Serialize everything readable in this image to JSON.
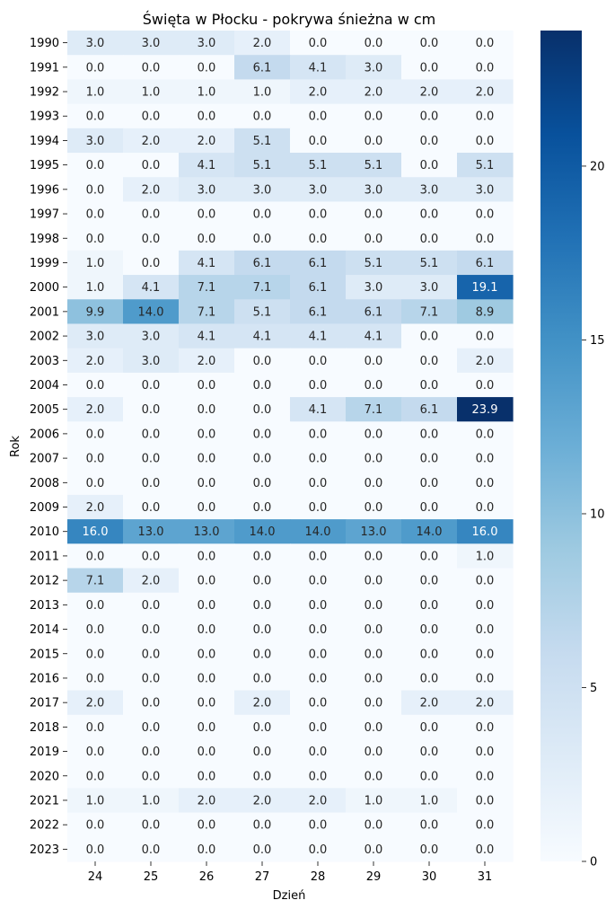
{
  "chart_data": {
    "type": "heatmap",
    "title": "Święta w Płocku - pokrywa śnieżna w cm",
    "xlabel": "Dzień",
    "ylabel": "Rok",
    "x_categories": [
      "24",
      "25",
      "26",
      "27",
      "28",
      "29",
      "30",
      "31"
    ],
    "y_categories": [
      "1990",
      "1991",
      "1992",
      "1993",
      "1994",
      "1995",
      "1996",
      "1997",
      "1998",
      "1999",
      "2000",
      "2001",
      "2002",
      "2003",
      "2004",
      "2005",
      "2006",
      "2007",
      "2008",
      "2009",
      "2010",
      "2011",
      "2012",
      "2013",
      "2014",
      "2015",
      "2016",
      "2017",
      "2018",
      "2019",
      "2020",
      "2021",
      "2022",
      "2023"
    ],
    "values": [
      [
        3.0,
        3.0,
        3.0,
        2.0,
        0.0,
        0.0,
        0.0,
        0.0
      ],
      [
        0.0,
        0.0,
        0.0,
        6.1,
        4.1,
        3.0,
        0.0,
        0.0
      ],
      [
        1.0,
        1.0,
        1.0,
        1.0,
        2.0,
        2.0,
        2.0,
        2.0
      ],
      [
        0.0,
        0.0,
        0.0,
        0.0,
        0.0,
        0.0,
        0.0,
        0.0
      ],
      [
        3.0,
        2.0,
        2.0,
        5.1,
        0.0,
        0.0,
        0.0,
        0.0
      ],
      [
        0.0,
        0.0,
        4.1,
        5.1,
        5.1,
        5.1,
        0.0,
        5.1
      ],
      [
        0.0,
        2.0,
        3.0,
        3.0,
        3.0,
        3.0,
        3.0,
        3.0
      ],
      [
        0.0,
        0.0,
        0.0,
        0.0,
        0.0,
        0.0,
        0.0,
        0.0
      ],
      [
        0.0,
        0.0,
        0.0,
        0.0,
        0.0,
        0.0,
        0.0,
        0.0
      ],
      [
        1.0,
        0.0,
        4.1,
        6.1,
        6.1,
        5.1,
        5.1,
        6.1
      ],
      [
        1.0,
        4.1,
        7.1,
        7.1,
        6.1,
        3.0,
        3.0,
        19.1
      ],
      [
        9.9,
        14.0,
        7.1,
        5.1,
        6.1,
        6.1,
        7.1,
        8.9
      ],
      [
        3.0,
        3.0,
        4.1,
        4.1,
        4.1,
        4.1,
        0.0,
        0.0
      ],
      [
        2.0,
        3.0,
        2.0,
        0.0,
        0.0,
        0.0,
        0.0,
        2.0
      ],
      [
        0.0,
        0.0,
        0.0,
        0.0,
        0.0,
        0.0,
        0.0,
        0.0
      ],
      [
        2.0,
        0.0,
        0.0,
        0.0,
        4.1,
        7.1,
        6.1,
        23.9
      ],
      [
        0.0,
        0.0,
        0.0,
        0.0,
        0.0,
        0.0,
        0.0,
        0.0
      ],
      [
        0.0,
        0.0,
        0.0,
        0.0,
        0.0,
        0.0,
        0.0,
        0.0
      ],
      [
        0.0,
        0.0,
        0.0,
        0.0,
        0.0,
        0.0,
        0.0,
        0.0
      ],
      [
        2.0,
        0.0,
        0.0,
        0.0,
        0.0,
        0.0,
        0.0,
        0.0
      ],
      [
        16.0,
        13.0,
        13.0,
        14.0,
        14.0,
        13.0,
        14.0,
        16.0
      ],
      [
        0.0,
        0.0,
        0.0,
        0.0,
        0.0,
        0.0,
        0.0,
        1.0
      ],
      [
        7.1,
        2.0,
        0.0,
        0.0,
        0.0,
        0.0,
        0.0,
        0.0
      ],
      [
        0.0,
        0.0,
        0.0,
        0.0,
        0.0,
        0.0,
        0.0,
        0.0
      ],
      [
        0.0,
        0.0,
        0.0,
        0.0,
        0.0,
        0.0,
        0.0,
        0.0
      ],
      [
        0.0,
        0.0,
        0.0,
        0.0,
        0.0,
        0.0,
        0.0,
        0.0
      ],
      [
        0.0,
        0.0,
        0.0,
        0.0,
        0.0,
        0.0,
        0.0,
        0.0
      ],
      [
        2.0,
        0.0,
        0.0,
        2.0,
        0.0,
        0.0,
        2.0,
        2.0
      ],
      [
        0.0,
        0.0,
        0.0,
        0.0,
        0.0,
        0.0,
        0.0,
        0.0
      ],
      [
        0.0,
        0.0,
        0.0,
        0.0,
        0.0,
        0.0,
        0.0,
        0.0
      ],
      [
        0.0,
        0.0,
        0.0,
        0.0,
        0.0,
        0.0,
        0.0,
        0.0
      ],
      [
        1.0,
        1.0,
        2.0,
        2.0,
        2.0,
        1.0,
        1.0,
        0.0
      ],
      [
        0.0,
        0.0,
        0.0,
        0.0,
        0.0,
        0.0,
        0.0,
        0.0
      ],
      [
        0.0,
        0.0,
        0.0,
        0.0,
        0.0,
        0.0,
        0.0,
        0.0
      ]
    ],
    "value_format": "0.0",
    "colorbar": {
      "colormap": "Blues",
      "range": [
        0,
        23.9
      ],
      "ticks": [
        0,
        5,
        10,
        15,
        20
      ],
      "tick_labels": [
        "0",
        "5",
        "10",
        "15",
        "20"
      ],
      "placement": "right"
    }
  }
}
